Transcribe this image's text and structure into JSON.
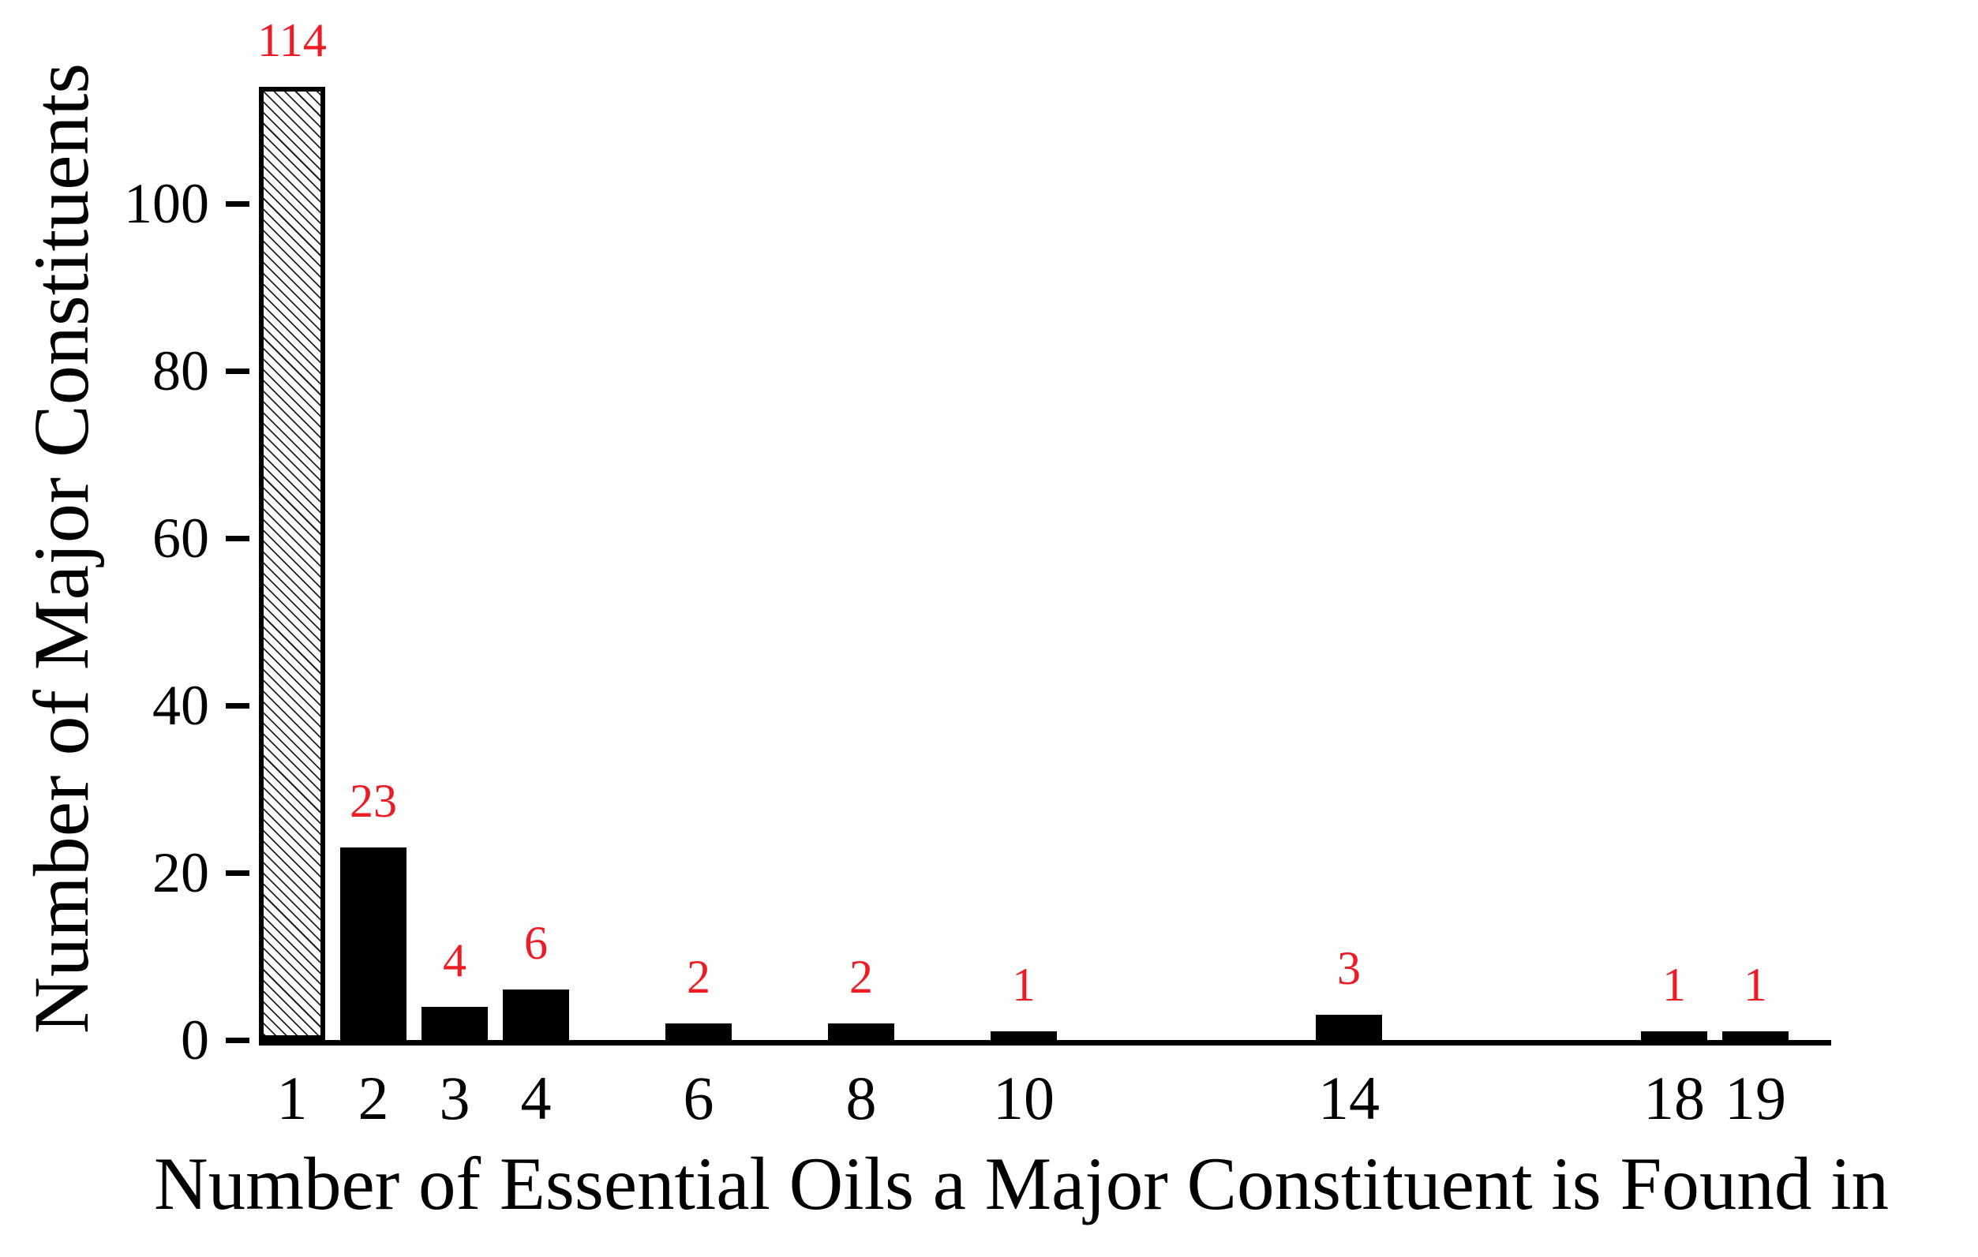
{
  "chart_data": {
    "type": "bar",
    "title": "",
    "xlabel": "Number of Essential Oils a Major Constituent is Found in",
    "ylabel": "Number of Major Constituents",
    "categories": [
      1,
      2,
      3,
      4,
      6,
      8,
      10,
      14,
      18,
      19
    ],
    "values": [
      114,
      23,
      4,
      6,
      2,
      2,
      1,
      3,
      1,
      1
    ],
    "bars": [
      {
        "x": 1,
        "value": 114,
        "label": "114",
        "hatched": true
      },
      {
        "x": 2,
        "value": 23,
        "label": "23",
        "hatched": false
      },
      {
        "x": 3,
        "value": 4,
        "label": "4",
        "hatched": false
      },
      {
        "x": 4,
        "value": 6,
        "label": "6",
        "hatched": false
      },
      {
        "x": 6,
        "value": 2,
        "label": "2",
        "hatched": false
      },
      {
        "x": 8,
        "value": 2,
        "label": "2",
        "hatched": false
      },
      {
        "x": 10,
        "value": 1,
        "label": "1",
        "hatched": false
      },
      {
        "x": 14,
        "value": 3,
        "label": "3",
        "hatched": false
      },
      {
        "x": 18,
        "value": 1,
        "label": "1",
        "hatched": false
      },
      {
        "x": 19,
        "value": 1,
        "label": "1",
        "hatched": false
      }
    ],
    "y_ticks": [
      0,
      20,
      40,
      60,
      80,
      100
    ],
    "ylim": [
      0,
      114
    ],
    "x_axis_scale": "linear",
    "grid": false,
    "legend": "none",
    "bar_fill_color": "#000000",
    "value_label_color": "#ed1c24",
    "first_bar_pattern": "white-with-black-diagonal-hatch"
  }
}
